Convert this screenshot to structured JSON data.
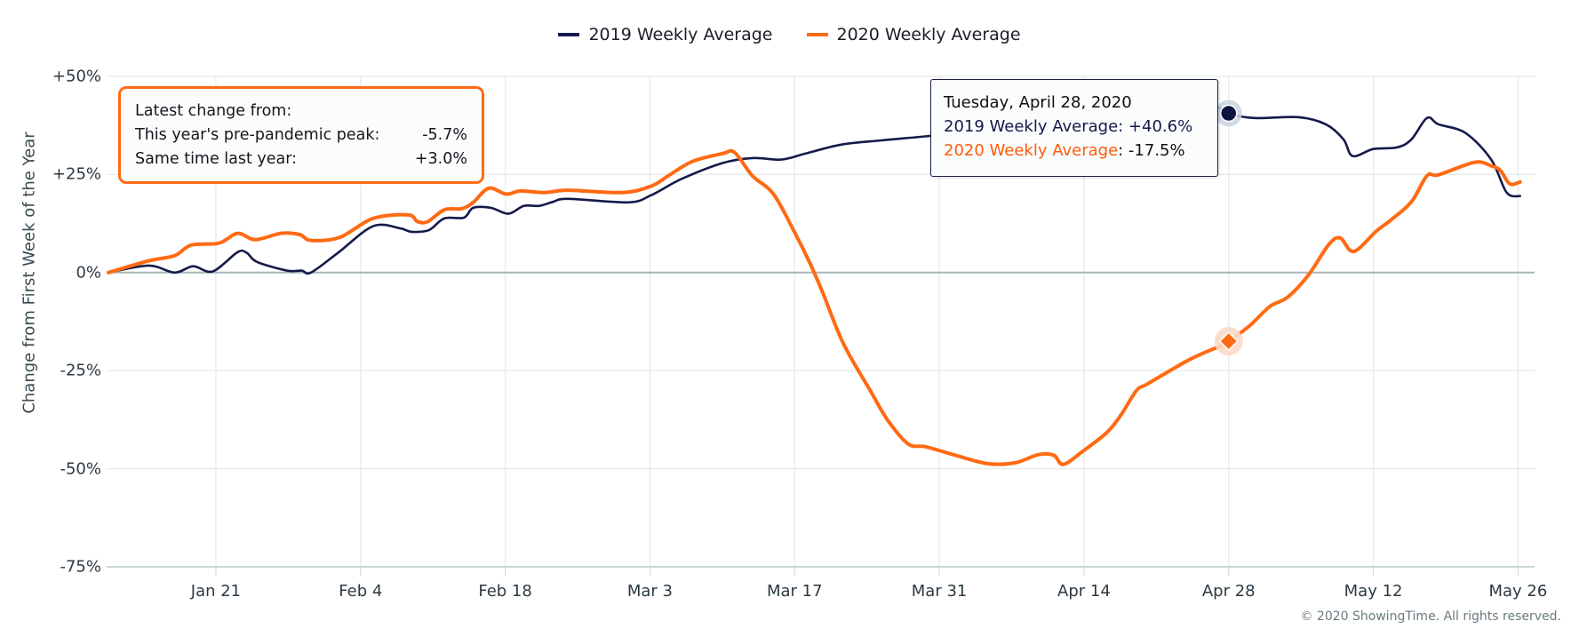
{
  "legend": [
    {
      "label": "2019 Weekly Average",
      "color": "#141a4a"
    },
    {
      "label": "2020 Weekly Average",
      "color": "#ff6a13"
    }
  ],
  "info_box": {
    "heading": "Latest change from:",
    "rows": [
      {
        "label": "This year's pre-pandemic peak:",
        "value": "-5.7%"
      },
      {
        "label": "Same time last year:",
        "value": "+3.0%"
      }
    ]
  },
  "tooltip": {
    "date": "Tuesday, April 28, 2020",
    "series_2019_label": "2019 Weekly Average",
    "series_2019_value": ": +40.6%",
    "series_2020_label": "2020 Weekly Average",
    "series_2020_value": ": -17.5%"
  },
  "copyright": "© 2020 ShowingTime. All rights reserved.",
  "chart_data": {
    "type": "line",
    "title": "",
    "xlabel": "",
    "ylabel": "Change from First Week of the Year",
    "x_unit": "days since Jan 11, 2020",
    "xlim": [
      0,
      138
    ],
    "ylim": [
      -75,
      50
    ],
    "y_ticks": [
      50,
      25,
      0,
      -25,
      -50,
      -75
    ],
    "y_tick_labels": [
      "+50%",
      "+25%",
      "0%",
      "-25%",
      "-50%",
      "-75%"
    ],
    "x_ticks": [
      10.4,
      24.4,
      38.4,
      52.4,
      66.4,
      80.4,
      94.4,
      108.4,
      122.4,
      136.4
    ],
    "x_tick_labels": [
      "Jan 21",
      "Feb 4",
      "Feb 18",
      "Mar 3",
      "Mar 17",
      "Mar 31",
      "Apr 14",
      "Apr 28",
      "May 12",
      "May 26"
    ],
    "grid": true,
    "legend_position": "top-center",
    "highlight": {
      "x": 108.4,
      "label": "Tuesday, April 28, 2020",
      "values": {
        "2019 Weekly Average": 40.6,
        "2020 Weekly Average": -17.5
      }
    },
    "series": [
      {
        "name": "2019 Weekly Average",
        "color": "#141a4a",
        "points": [
          [
            0,
            0
          ],
          [
            3.9,
            1.8
          ],
          [
            6.4,
            0
          ],
          [
            8.2,
            1.6
          ],
          [
            10.1,
            0.3
          ],
          [
            12.5,
            5.2
          ],
          [
            13.4,
            5.0
          ],
          [
            14.4,
            2.7
          ],
          [
            17.3,
            0.5
          ],
          [
            18.7,
            0.5
          ],
          [
            19.6,
            0
          ],
          [
            22.2,
            5.0
          ],
          [
            25.6,
            11.8
          ],
          [
            28.2,
            11.3
          ],
          [
            29.3,
            10.4
          ],
          [
            31.0,
            10.8
          ],
          [
            32.5,
            13.8
          ],
          [
            34.4,
            14.0
          ],
          [
            35.3,
            16.5
          ],
          [
            37.0,
            16.5
          ],
          [
            38.7,
            15.0
          ],
          [
            40.2,
            17.0
          ],
          [
            41.7,
            17.0
          ],
          [
            43.0,
            18.0
          ],
          [
            44.5,
            18.8
          ],
          [
            50.3,
            17.9
          ],
          [
            52.5,
            19.7
          ],
          [
            55.4,
            23.8
          ],
          [
            59.4,
            27.9
          ],
          [
            62.3,
            29.2
          ],
          [
            65.1,
            28.8
          ],
          [
            67.4,
            30.3
          ],
          [
            70.9,
            32.6
          ],
          [
            74.8,
            33.7
          ],
          [
            78.6,
            34.6
          ],
          [
            84.0,
            36.0
          ],
          [
            92.6,
            38.0
          ],
          [
            101.2,
            41.0
          ],
          [
            106.3,
            43.0
          ],
          [
            108.4,
            40.6
          ],
          [
            110.9,
            39.4
          ],
          [
            115.2,
            39.6
          ],
          [
            117.8,
            37.8
          ],
          [
            119.5,
            34.0
          ],
          [
            120.4,
            29.7
          ],
          [
            122.4,
            31.5
          ],
          [
            124.7,
            31.9
          ],
          [
            126.1,
            34.0
          ],
          [
            127.6,
            39.4
          ],
          [
            128.7,
            37.8
          ],
          [
            131.3,
            35.6
          ],
          [
            133.8,
            28.8
          ],
          [
            135.3,
            20.4
          ],
          [
            136.6,
            19.5
          ]
        ]
      },
      {
        "name": "2020 Weekly Average",
        "color": "#ff6a13",
        "points": [
          [
            0,
            0
          ],
          [
            3.9,
            3.0
          ],
          [
            6.4,
            4.3
          ],
          [
            8.0,
            7.0
          ],
          [
            10.7,
            7.5
          ],
          [
            12.5,
            10.0
          ],
          [
            14.2,
            8.4
          ],
          [
            16.7,
            10.0
          ],
          [
            18.5,
            9.7
          ],
          [
            19.6,
            8.2
          ],
          [
            22.4,
            9.0
          ],
          [
            25.6,
            13.8
          ],
          [
            29.0,
            14.7
          ],
          [
            29.9,
            13.0
          ],
          [
            30.9,
            13.0
          ],
          [
            32.5,
            16.0
          ],
          [
            34.2,
            16.3
          ],
          [
            35.3,
            17.9
          ],
          [
            36.8,
            21.5
          ],
          [
            38.5,
            20.0
          ],
          [
            39.9,
            20.8
          ],
          [
            42.2,
            20.4
          ],
          [
            44.5,
            21.0
          ],
          [
            49.7,
            20.4
          ],
          [
            52.5,
            22.0
          ],
          [
            54.2,
            24.7
          ],
          [
            56.5,
            28.3
          ],
          [
            59.4,
            30.3
          ],
          [
            60.6,
            30.6
          ],
          [
            62.3,
            24.7
          ],
          [
            64.3,
            20.2
          ],
          [
            66.2,
            11.3
          ],
          [
            67.9,
            2.3
          ],
          [
            69.1,
            -5.0
          ],
          [
            71.1,
            -18.0
          ],
          [
            73.7,
            -30.0
          ],
          [
            75.4,
            -37.6
          ],
          [
            77.4,
            -43.7
          ],
          [
            79.1,
            -44.4
          ],
          [
            82.0,
            -46.6
          ],
          [
            85.1,
            -48.7
          ],
          [
            87.7,
            -48.5
          ],
          [
            90.0,
            -46.4
          ],
          [
            91.5,
            -46.6
          ],
          [
            92.4,
            -48.9
          ],
          [
            94.3,
            -45.5
          ],
          [
            96.6,
            -40.8
          ],
          [
            98.0,
            -36.2
          ],
          [
            99.5,
            -30.0
          ],
          [
            100.6,
            -28.3
          ],
          [
            104.6,
            -22.2
          ],
          [
            107.5,
            -18.8
          ],
          [
            108.4,
            -17.5
          ],
          [
            110.4,
            -13.6
          ],
          [
            112.4,
            -8.6
          ],
          [
            114.1,
            -6.3
          ],
          [
            116.1,
            -0.7
          ],
          [
            118.1,
            7.2
          ],
          [
            119.2,
            8.8
          ],
          [
            120.5,
            5.4
          ],
          [
            122.7,
            10.6
          ],
          [
            124.2,
            13.6
          ],
          [
            126.1,
            18.1
          ],
          [
            127.6,
            24.7
          ],
          [
            128.7,
            24.9
          ],
          [
            132.2,
            28.1
          ],
          [
            133.8,
            27.2
          ],
          [
            134.7,
            26.0
          ],
          [
            135.6,
            22.6
          ],
          [
            136.6,
            23.1
          ]
        ]
      }
    ]
  }
}
